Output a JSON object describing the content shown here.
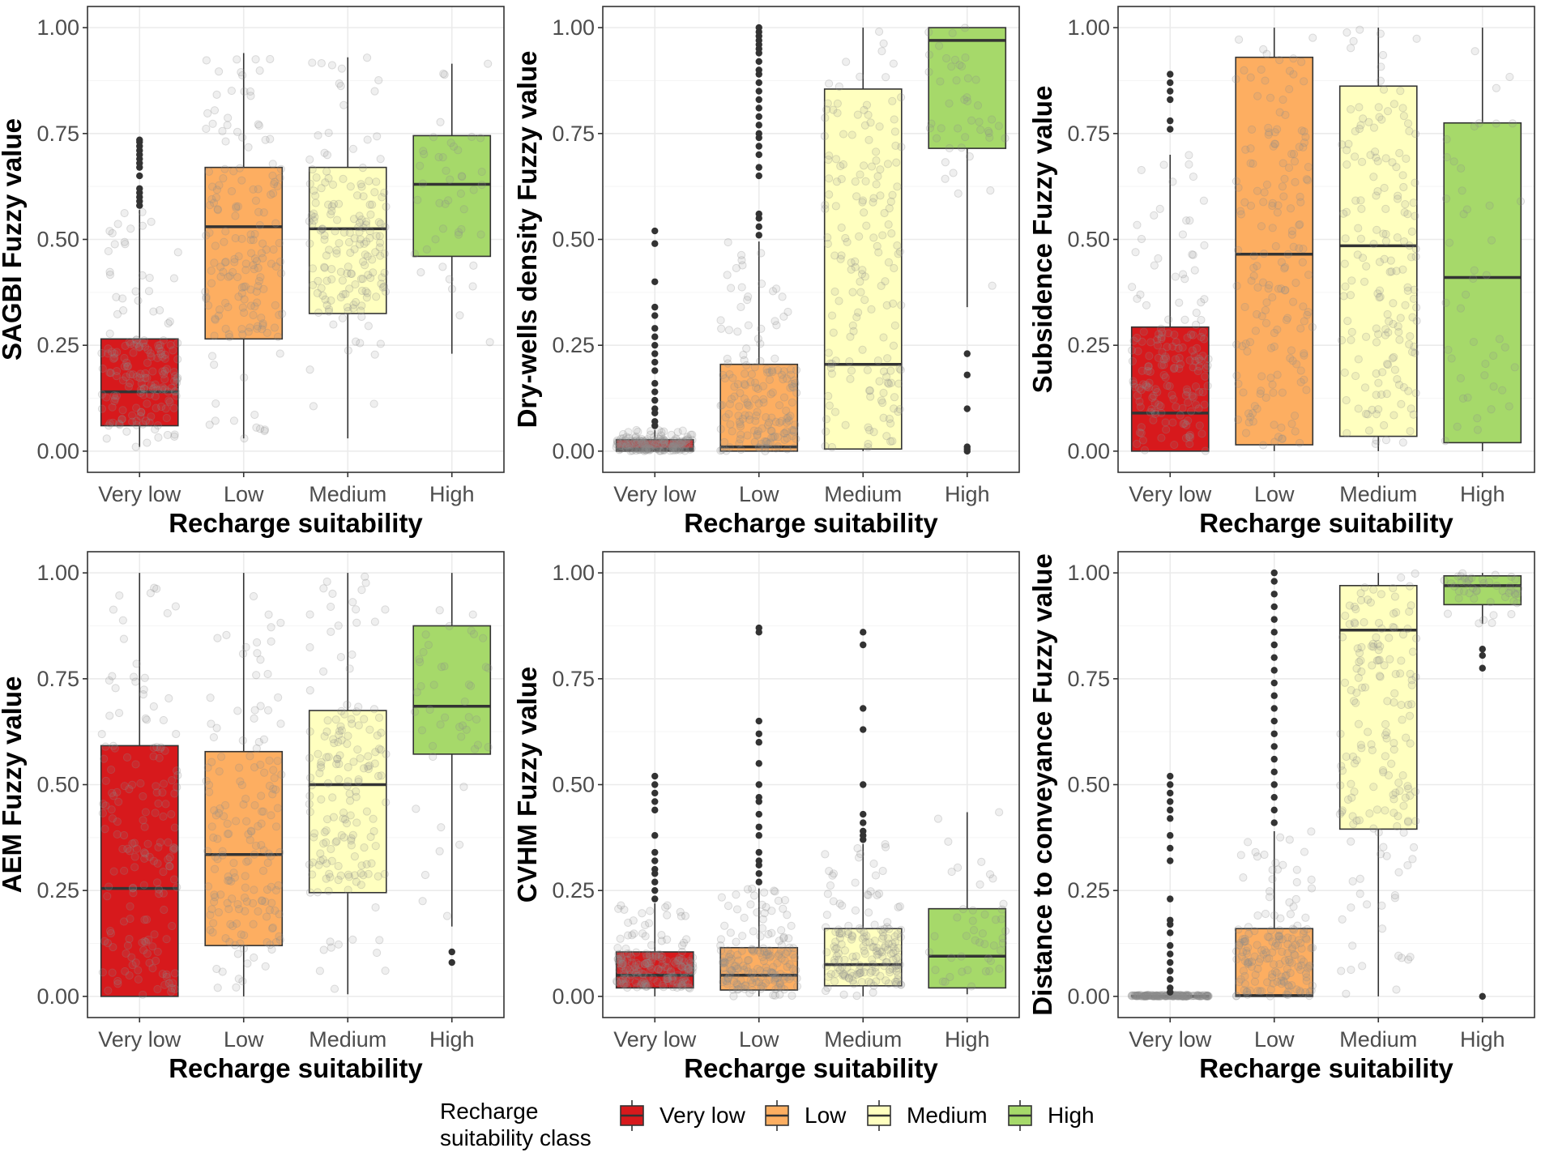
{
  "figure": {
    "legend": {
      "title_lines": [
        "Recharge",
        "suitability class"
      ],
      "entries": [
        {
          "label": "Very low",
          "color": "#d7191c"
        },
        {
          "label": "Low",
          "color": "#fdae61"
        },
        {
          "label": "Medium",
          "color": "#ffffbf"
        },
        {
          "label": "High",
          "color": "#a6d96a"
        }
      ],
      "placement": "bottom"
    },
    "colors": {
      "panel_border": "#333333",
      "grid_major": "#ebebeb",
      "grid_minor": "#f5f5f5",
      "median": "#333333",
      "outlier": "#333333",
      "jitter": "#8c8c8c"
    }
  },
  "chart_data": [
    {
      "type": "boxplot",
      "title": "",
      "xlabel": "Recharge suitability",
      "ylabel": "SAGBI Fuzzy value",
      "categories": [
        "Very low",
        "Low",
        "Medium",
        "High"
      ],
      "ylim": [
        -0.05,
        1.05
      ],
      "yticks": [
        0.0,
        0.25,
        0.5,
        0.75,
        1.0
      ],
      "ytick_labels": [
        "0.00",
        "0.25",
        "0.50",
        "0.75",
        "1.00"
      ],
      "boxes": [
        {
          "category": "Very low",
          "whisker_low": 0.01,
          "q1": 0.06,
          "median": 0.14,
          "q3": 0.265,
          "whisker_high": 0.57,
          "outliers": [
            0.58,
            0.59,
            0.6,
            0.61,
            0.62,
            0.65,
            0.67,
            0.68,
            0.69,
            0.7,
            0.71,
            0.72,
            0.73,
            0.735
          ]
        },
        {
          "category": "Low",
          "whisker_low": 0.03,
          "q1": 0.265,
          "median": 0.53,
          "q3": 0.67,
          "whisker_high": 0.94,
          "outliers": []
        },
        {
          "category": "Medium",
          "whisker_low": 0.03,
          "q1": 0.325,
          "median": 0.525,
          "q3": 0.67,
          "whisker_high": 0.93,
          "outliers": []
        },
        {
          "category": "High",
          "whisker_low": 0.23,
          "q1": 0.46,
          "median": 0.63,
          "q3": 0.745,
          "whisker_high": 0.915,
          "outliers": []
        }
      ]
    },
    {
      "type": "boxplot",
      "title": "",
      "xlabel": "Recharge suitability",
      "ylabel": "Dry-wells density Fuzzy value",
      "categories": [
        "Very low",
        "Low",
        "Medium",
        "High"
      ],
      "ylim": [
        -0.05,
        1.05
      ],
      "yticks": [
        0.0,
        0.25,
        0.5,
        0.75,
        1.0
      ],
      "ytick_labels": [
        "0.00",
        "0.25",
        "0.50",
        "0.75",
        "1.00"
      ],
      "boxes": [
        {
          "category": "Very low",
          "whisker_low": 0.0,
          "q1": 0.0,
          "median": 0.005,
          "q3": 0.027,
          "whisker_high": 0.05,
          "outliers": [
            0.06,
            0.07,
            0.09,
            0.1,
            0.12,
            0.14,
            0.16,
            0.19,
            0.21,
            0.23,
            0.25,
            0.27,
            0.29,
            0.32,
            0.34,
            0.4,
            0.49,
            0.52
          ]
        },
        {
          "category": "Low",
          "whisker_low": 0.0,
          "q1": 0.0,
          "median": 0.01,
          "q3": 0.205,
          "whisker_high": 0.495,
          "outliers": [
            0.51,
            0.53,
            0.55,
            0.56,
            0.65,
            0.67,
            0.7,
            0.72,
            0.74,
            0.75,
            0.77,
            0.79,
            0.81,
            0.83,
            0.85,
            0.87,
            0.89,
            0.9,
            0.92,
            0.94,
            0.95,
            0.96,
            0.97,
            0.98,
            0.99,
            1.0
          ]
        },
        {
          "category": "Medium",
          "whisker_low": 0.0,
          "q1": 0.005,
          "median": 0.205,
          "q3": 0.855,
          "whisker_high": 1.0,
          "outliers": []
        },
        {
          "category": "High",
          "whisker_low": 0.34,
          "q1": 0.715,
          "median": 0.97,
          "q3": 1.0,
          "whisker_high": 1.0,
          "outliers": [
            0.0,
            0.005,
            0.01,
            0.1,
            0.18,
            0.23
          ]
        }
      ]
    },
    {
      "type": "boxplot",
      "title": "",
      "xlabel": "Recharge suitability",
      "ylabel": "Subsidence Fuzzy value",
      "categories": [
        "Very low",
        "Low",
        "Medium",
        "High"
      ],
      "ylim": [
        -0.05,
        1.05
      ],
      "yticks": [
        0.0,
        0.25,
        0.5,
        0.75,
        1.0
      ],
      "ytick_labels": [
        "0.00",
        "0.25",
        "0.50",
        "0.75",
        "1.00"
      ],
      "boxes": [
        {
          "category": "Very low",
          "whisker_low": 0.0,
          "q1": 0.0,
          "median": 0.09,
          "q3": 0.293,
          "whisker_high": 0.7,
          "outliers": [
            0.76,
            0.78,
            0.83,
            0.85,
            0.87,
            0.89
          ]
        },
        {
          "category": "Low",
          "whisker_low": 0.0,
          "q1": 0.015,
          "median": 0.465,
          "q3": 0.93,
          "whisker_high": 1.0,
          "outliers": []
        },
        {
          "category": "Medium",
          "whisker_low": 0.0,
          "q1": 0.035,
          "median": 0.485,
          "q3": 0.862,
          "whisker_high": 1.0,
          "outliers": []
        },
        {
          "category": "High",
          "whisker_low": 0.0,
          "q1": 0.02,
          "median": 0.41,
          "q3": 0.775,
          "whisker_high": 1.0,
          "outliers": []
        }
      ]
    },
    {
      "type": "boxplot",
      "title": "",
      "xlabel": "Recharge suitability",
      "ylabel": "AEM Fuzzy value",
      "categories": [
        "Very low",
        "Low",
        "Medium",
        "High"
      ],
      "ylim": [
        -0.05,
        1.05
      ],
      "yticks": [
        0.0,
        0.25,
        0.5,
        0.75,
        1.0
      ],
      "ytick_labels": [
        "0.00",
        "0.25",
        "0.50",
        "0.75",
        "1.00"
      ],
      "boxes": [
        {
          "category": "Very low",
          "whisker_low": 0.0,
          "q1": 0.0,
          "median": 0.255,
          "q3": 0.592,
          "whisker_high": 1.0,
          "outliers": []
        },
        {
          "category": "Low",
          "whisker_low": 0.0,
          "q1": 0.12,
          "median": 0.335,
          "q3": 0.578,
          "whisker_high": 1.0,
          "outliers": []
        },
        {
          "category": "Medium",
          "whisker_low": 0.005,
          "q1": 0.245,
          "median": 0.5,
          "q3": 0.675,
          "whisker_high": 1.0,
          "outliers": []
        },
        {
          "category": "High",
          "whisker_low": 0.165,
          "q1": 0.572,
          "median": 0.685,
          "q3": 0.875,
          "whisker_high": 1.0,
          "outliers": [
            0.08,
            0.105
          ]
        }
      ]
    },
    {
      "type": "boxplot",
      "title": "",
      "xlabel": "Recharge suitability",
      "ylabel": "CVHM Fuzzy value",
      "categories": [
        "Very low",
        "Low",
        "Medium",
        "High"
      ],
      "ylim": [
        -0.05,
        1.05
      ],
      "yticks": [
        0.0,
        0.25,
        0.5,
        0.75,
        1.0
      ],
      "ytick_labels": [
        "0.00",
        "0.25",
        "0.50",
        "0.75",
        "1.00"
      ],
      "boxes": [
        {
          "category": "Very low",
          "whisker_low": 0.0,
          "q1": 0.02,
          "median": 0.05,
          "q3": 0.105,
          "whisker_high": 0.22,
          "outliers": [
            0.23,
            0.25,
            0.27,
            0.29,
            0.3,
            0.32,
            0.34,
            0.38,
            0.44,
            0.46,
            0.48,
            0.5,
            0.52
          ]
        },
        {
          "category": "Low",
          "whisker_low": 0.0,
          "q1": 0.015,
          "median": 0.05,
          "q3": 0.115,
          "whisker_high": 0.255,
          "outliers": [
            0.27,
            0.29,
            0.31,
            0.32,
            0.34,
            0.38,
            0.4,
            0.43,
            0.46,
            0.47,
            0.5,
            0.55,
            0.6,
            0.62,
            0.65,
            0.86,
            0.87
          ]
        },
        {
          "category": "Medium",
          "whisker_low": 0.0,
          "q1": 0.025,
          "median": 0.075,
          "q3": 0.16,
          "whisker_high": 0.36,
          "outliers": [
            0.37,
            0.38,
            0.39,
            0.41,
            0.43,
            0.5,
            0.63,
            0.68,
            0.83,
            0.86
          ]
        },
        {
          "category": "High",
          "whisker_low": 0.005,
          "q1": 0.02,
          "median": 0.095,
          "q3": 0.207,
          "whisker_high": 0.435,
          "outliers": []
        }
      ]
    },
    {
      "type": "boxplot",
      "title": "",
      "xlabel": "Recharge suitability",
      "ylabel": "Distance to conveyance Fuzzy value",
      "categories": [
        "Very low",
        "Low",
        "Medium",
        "High"
      ],
      "ylim": [
        -0.05,
        1.05
      ],
      "yticks": [
        0.0,
        0.25,
        0.5,
        0.75,
        1.0
      ],
      "ytick_labels": [
        "0.00",
        "0.25",
        "0.50",
        "0.75",
        "1.00"
      ],
      "boxes": [
        {
          "category": "Very low",
          "whisker_low": 0.0,
          "q1": 0.0,
          "median": 0.0,
          "q3": 0.002,
          "whisker_high": 0.004,
          "outliers": [
            0.01,
            0.02,
            0.04,
            0.06,
            0.08,
            0.1,
            0.12,
            0.15,
            0.17,
            0.18,
            0.23,
            0.32,
            0.35,
            0.38,
            0.42,
            0.44,
            0.46,
            0.48,
            0.5,
            0.52
          ]
        },
        {
          "category": "Low",
          "whisker_low": 0.0,
          "q1": 0.0,
          "median": 0.002,
          "q3": 0.16,
          "whisker_high": 0.39,
          "outliers": [
            0.41,
            0.44,
            0.47,
            0.5,
            0.53,
            0.56,
            0.59,
            0.62,
            0.65,
            0.68,
            0.71,
            0.74,
            0.77,
            0.8,
            0.83,
            0.86,
            0.89,
            0.92,
            0.95,
            0.98,
            1.0
          ]
        },
        {
          "category": "Medium",
          "whisker_low": 0.0,
          "q1": 0.395,
          "median": 0.865,
          "q3": 0.97,
          "whisker_high": 1.0,
          "outliers": []
        },
        {
          "category": "High",
          "whisker_low": 0.88,
          "q1": 0.925,
          "median": 0.97,
          "q3": 0.993,
          "whisker_high": 1.0,
          "outliers": [
            0.0,
            0.775,
            0.805,
            0.82
          ]
        }
      ]
    }
  ]
}
